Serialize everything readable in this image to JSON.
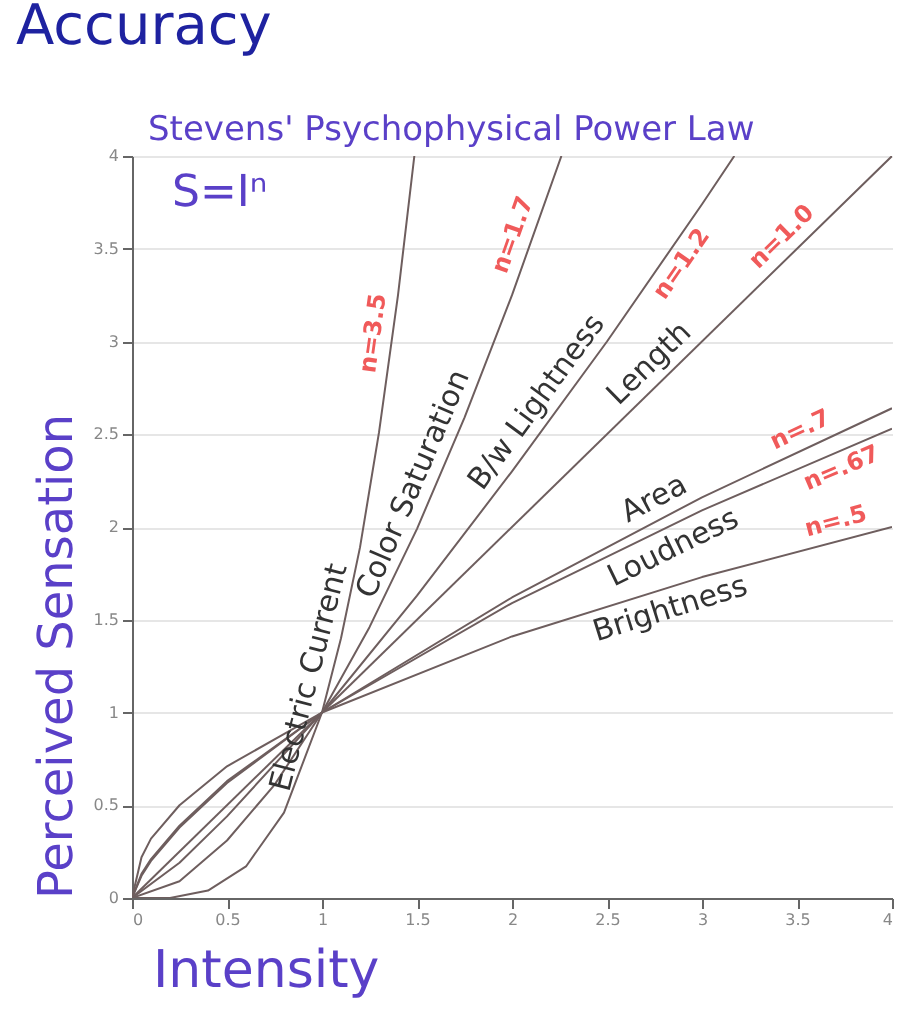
{
  "chart_data": {
    "type": "line",
    "title": "Accuracy",
    "subtitle": "Stevens' Psychophysical Power Law",
    "xlabel": "Intensity",
    "ylabel": "Perceived Sensation",
    "xlim": [
      0,
      4
    ],
    "ylim": [
      0,
      4
    ],
    "xticks": [
      0,
      0.5,
      1,
      1.5,
      2,
      2.5,
      3,
      3.5,
      4
    ],
    "yticks": [
      0,
      0.5,
      1,
      1.5,
      2,
      2.5,
      3,
      3.5,
      4
    ],
    "grid": "y",
    "line_style": "solid",
    "annotations": [
      "S=Iⁿ",
      {
        "text": "n=3.5",
        "x": 1.37,
        "y": 3.03
      },
      {
        "text": "n=1.7",
        "x": 2.1,
        "y": 3.54
      },
      {
        "text": "n=1.2",
        "x": 2.82,
        "y": 3.47
      },
      {
        "text": "n=1.0",
        "x": 3.49,
        "y": 3.49
      },
      {
        "text": "n=.7",
        "x": 3.56,
        "y": 2.43
      },
      {
        "text": "n=.67",
        "x": 3.7,
        "y": 2.4
      },
      {
        "text": "n=.5",
        "x": 3.73,
        "y": 1.93
      }
    ],
    "series": [
      {
        "name": "Electric Current",
        "color": "#6e5e5e",
        "x": [
          0,
          0.2,
          0.4,
          0.6,
          0.8,
          1,
          1.1,
          1.2,
          1.3,
          1.4,
          1.486
        ],
        "values": [
          0,
          0,
          0.04,
          0.17,
          0.46,
          1,
          1.4,
          1.89,
          2.51,
          3.25,
          4
        ]
      },
      {
        "name": "Color Saturation",
        "color": "#6e5e5e",
        "x": [
          0,
          0.25,
          0.5,
          0.75,
          1,
          1.25,
          1.5,
          1.75,
          2,
          2.26
        ],
        "values": [
          0,
          0.09,
          0.31,
          0.61,
          1,
          1.46,
          1.99,
          2.59,
          3.25,
          4
        ]
      },
      {
        "name": "B/w Lightness",
        "color": "#6e5e5e",
        "x": [
          0,
          0.25,
          0.5,
          1,
          1.5,
          2,
          2.5,
          3,
          3.17
        ],
        "values": [
          0,
          0.19,
          0.44,
          1,
          1.63,
          2.3,
          3,
          3.74,
          4
        ]
      },
      {
        "name": "Length",
        "color": "#6e5e5e",
        "x": [
          0,
          1,
          4
        ],
        "values": [
          0,
          1,
          4
        ]
      },
      {
        "name": "Area",
        "color": "#6e5e5e",
        "x": [
          0,
          0.05,
          0.1,
          0.25,
          0.5,
          1,
          2,
          3,
          4
        ],
        "values": [
          0,
          0.12,
          0.2,
          0.38,
          0.62,
          1,
          1.62,
          2.16,
          2.64
        ]
      },
      {
        "name": "Loudness",
        "color": "#6e5e5e",
        "x": [
          0,
          0.05,
          0.1,
          0.25,
          0.5,
          1,
          2,
          3,
          4
        ],
        "values": [
          0,
          0.13,
          0.21,
          0.39,
          0.63,
          1,
          1.59,
          2.09,
          2.53
        ]
      },
      {
        "name": "Brightness",
        "color": "#6e5e5e",
        "x": [
          0,
          0.05,
          0.1,
          0.25,
          0.5,
          1,
          2,
          3,
          4
        ],
        "values": [
          0,
          0.22,
          0.32,
          0.5,
          0.71,
          1,
          1.41,
          1.73,
          2
        ]
      }
    ]
  }
}
